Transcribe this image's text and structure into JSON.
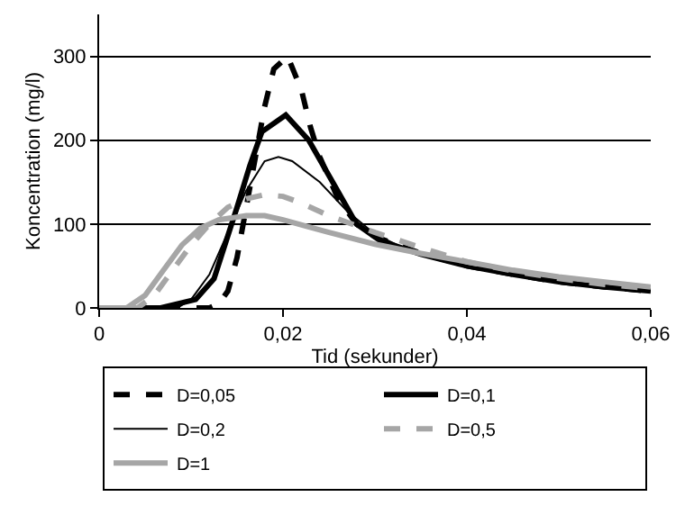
{
  "chart_data": {
    "type": "line",
    "xlabel": "Tid (sekunder)",
    "ylabel": "Koncentration (mg/l)",
    "xlim": [
      0,
      0.06
    ],
    "xticks": [
      0,
      {
        "value": 0.02,
        "label": "0,02"
      },
      {
        "value": 0.04,
        "label": "0,04"
      },
      {
        "value": 0.06,
        "label": "0,06"
      }
    ],
    "ylim": [
      0,
      350
    ],
    "yticks": [
      0,
      100,
      200,
      300
    ],
    "grid": "y",
    "legend": "bottom",
    "marker": "none",
    "series": [
      {
        "name": "D=0,05",
        "color": "#000000",
        "line_style": "dashed",
        "x": [
          0,
          0.012,
          0.013,
          0.014,
          0.015,
          0.016,
          0.017,
          0.018,
          0.019,
          0.0205,
          0.022,
          0.023,
          0.024,
          0.026,
          0.028,
          0.03,
          0.035,
          0.04,
          0.045,
          0.05,
          0.055,
          0.06
        ],
        "values": [
          0,
          0,
          5,
          20,
          60,
          120,
          180,
          240,
          285,
          300,
          260,
          215,
          180,
          130,
          100,
          85,
          65,
          50,
          40,
          31,
          25,
          20
        ]
      },
      {
        "name": "D=0,1",
        "color": "#000000",
        "line_style": "solid",
        "x": [
          0,
          0.0067,
          0.0105,
          0.0125,
          0.015,
          0.0164,
          0.0177,
          0.0203,
          0.0228,
          0.0254,
          0.028,
          0.0306,
          0.035,
          0.04,
          0.045,
          0.05,
          0.055,
          0.06
        ],
        "values": [
          0,
          0,
          10,
          35,
          120,
          170,
          210,
          230,
          200,
          150,
          100,
          80,
          64,
          50,
          40,
          31,
          25,
          20
        ]
      },
      {
        "name": "D=0,2",
        "color": "#000000",
        "line_style": "solid",
        "x": [
          0,
          0.0085,
          0.01,
          0.012,
          0.014,
          0.016,
          0.018,
          0.0195,
          0.021,
          0.024,
          0.027,
          0.03,
          0.033,
          0.04,
          0.045,
          0.05,
          0.055,
          0.06
        ],
        "values": [
          0,
          0,
          10,
          40,
          90,
          140,
          175,
          180,
          175,
          150,
          115,
          88,
          72,
          51,
          41,
          33,
          26,
          21
        ]
      },
      {
        "name": "D=0,5",
        "color": "#a6a6a6",
        "line_style": "dashed",
        "x": [
          0,
          0.0042,
          0.006,
          0.008,
          0.01,
          0.012,
          0.014,
          0.016,
          0.018,
          0.02,
          0.022,
          0.025,
          0.03,
          0.035,
          0.04,
          0.045,
          0.05,
          0.055,
          0.06
        ],
        "values": [
          0,
          0,
          15,
          45,
          75,
          100,
          120,
          130,
          135,
          133,
          125,
          110,
          90,
          72,
          55,
          44,
          35,
          28,
          23
        ]
      },
      {
        "name": "D=1",
        "color": "#a6a6a6",
        "line_style": "solid",
        "x": [
          0,
          0.003,
          0.005,
          0.007,
          0.009,
          0.011,
          0.013,
          0.016,
          0.018,
          0.02,
          0.025,
          0.03,
          0.035,
          0.04,
          0.045,
          0.05,
          0.055,
          0.06
        ],
        "values": [
          0,
          0,
          15,
          45,
          75,
          95,
          105,
          110,
          110,
          105,
          90,
          76,
          65,
          55,
          45,
          37,
          31,
          25
        ]
      }
    ]
  }
}
